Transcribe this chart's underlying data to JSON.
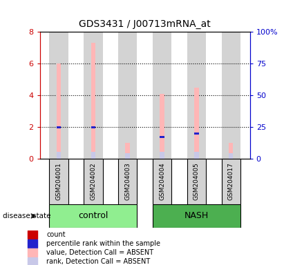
{
  "title": "GDS3431 / J00713mRNA_at",
  "samples": [
    "GSM204001",
    "GSM204002",
    "GSM204003",
    "GSM204004",
    "GSM204005",
    "GSM204017"
  ],
  "groups": [
    "control",
    "control",
    "control",
    "NASH",
    "NASH",
    "NASH"
  ],
  "group_defs": [
    {
      "label": "control",
      "start": 0,
      "end": 2,
      "color": "#90ee90"
    },
    {
      "label": "NASH",
      "start": 3,
      "end": 5,
      "color": "#4caf50"
    }
  ],
  "bar_bg_color": "#d3d3d3",
  "value_absent": [
    6.0,
    7.3,
    1.0,
    4.1,
    4.5,
    1.0
  ],
  "rank_absent_bar": [
    0.45,
    0.45,
    0.35,
    0.45,
    0.45,
    0.35
  ],
  "percentile_blue": [
    2.0,
    2.0,
    null,
    1.4,
    1.6,
    null
  ],
  "ylim_left": [
    0,
    8
  ],
  "ylim_right": [
    0,
    100
  ],
  "yticks_left": [
    0,
    2,
    4,
    6,
    8
  ],
  "yticks_right": [
    0,
    25,
    50,
    75,
    100
  ],
  "ytick_labels_right": [
    "0",
    "25",
    "50",
    "75",
    "100%"
  ],
  "left_axis_color": "#cc0000",
  "right_axis_color": "#0000cc",
  "value_absent_color": "#ffb6b6",
  "rank_absent_color": "#c8c8e8",
  "percentile_color": "#2222cc",
  "legend_items": [
    {
      "label": "count",
      "color": "#cc0000"
    },
    {
      "label": "percentile rank within the sample",
      "color": "#2222cc"
    },
    {
      "label": "value, Detection Call = ABSENT",
      "color": "#ffb6b6"
    },
    {
      "label": "rank, Detection Call = ABSENT",
      "color": "#c8c8e8"
    }
  ],
  "bar_width": 0.55,
  "pink_bar_width": 0.13,
  "gridline_values": [
    2,
    4,
    6
  ],
  "disease_state_label": "disease state"
}
